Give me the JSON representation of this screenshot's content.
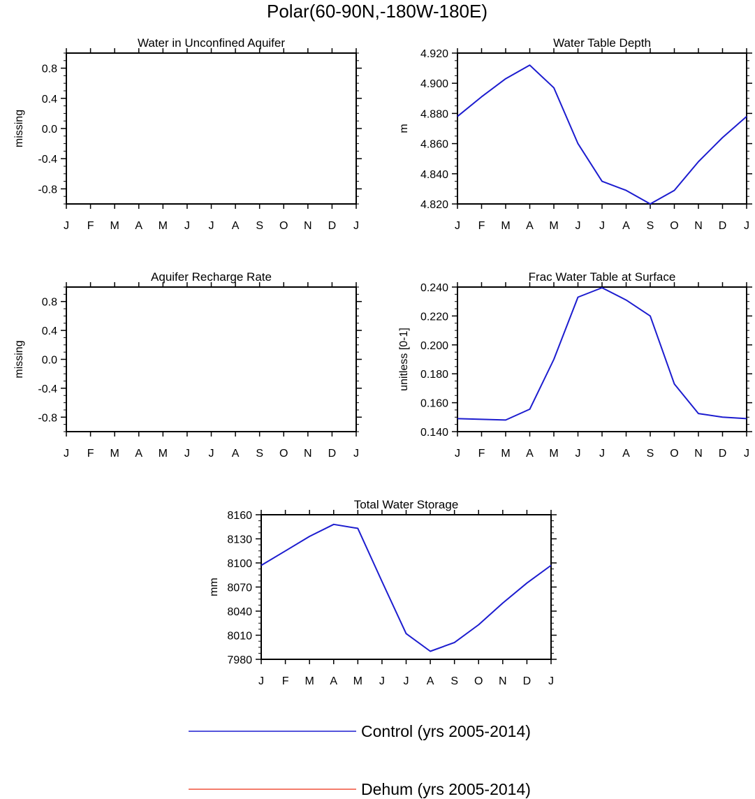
{
  "figure": {
    "title": "Polar(60-90N,-180W-180E)"
  },
  "colors": {
    "control": "#1c1ccf",
    "dehum": "#f0503c",
    "axis": "#000000"
  },
  "legend": {
    "placement": "bottom-center",
    "entries": [
      {
        "label": "Control (yrs 2005-2014)",
        "color": "#1c1ccf"
      },
      {
        "label": "Dehum (yrs 2005-2014)",
        "color": "#f0503c"
      }
    ]
  },
  "chart_data": [
    {
      "type": "line",
      "title": "Water in Unconfined Aquifer",
      "xlabel": "",
      "ylabel": "missing",
      "categories": [
        "J",
        "F",
        "M",
        "A",
        "M",
        "J",
        "J",
        "A",
        "S",
        "O",
        "N",
        "D",
        "J"
      ],
      "ylim": [
        -1.0,
        1.0
      ],
      "yticks": [
        -0.8,
        -0.4,
        0.0,
        0.4,
        0.8
      ],
      "ytick_labels": [
        "-0.8",
        "-0.4",
        "0.0",
        "0.4",
        "0.8"
      ],
      "yminor": 0.1,
      "grid": false,
      "series": []
    },
    {
      "type": "line",
      "title": "Water Table Depth",
      "xlabel": "",
      "ylabel": "m",
      "categories": [
        "J",
        "F",
        "M",
        "A",
        "M",
        "J",
        "J",
        "A",
        "S",
        "O",
        "N",
        "D",
        "J"
      ],
      "ylim": [
        4.82,
        4.92
      ],
      "yticks": [
        4.82,
        4.84,
        4.86,
        4.88,
        4.9,
        4.92
      ],
      "ytick_labels": [
        "4.820",
        "4.840",
        "4.860",
        "4.880",
        "4.900",
        "4.920"
      ],
      "yminor": 0.005,
      "grid": false,
      "series": [
        {
          "name": "Control (yrs 2005-2014)",
          "values": [
            4.878,
            4.891,
            4.903,
            4.912,
            4.897,
            4.86,
            4.835,
            4.829,
            4.82,
            4.829,
            4.848,
            4.864,
            4.878
          ]
        }
      ]
    },
    {
      "type": "line",
      "title": "Aquifer Recharge Rate",
      "xlabel": "",
      "ylabel": "missing",
      "categories": [
        "J",
        "F",
        "M",
        "A",
        "M",
        "J",
        "J",
        "A",
        "S",
        "O",
        "N",
        "D",
        "J"
      ],
      "ylim": [
        -1.0,
        1.0
      ],
      "yticks": [
        -0.8,
        -0.4,
        0.0,
        0.4,
        0.8
      ],
      "ytick_labels": [
        "-0.8",
        "-0.4",
        "0.0",
        "0.4",
        "0.8"
      ],
      "yminor": 0.1,
      "grid": false,
      "series": []
    },
    {
      "type": "line",
      "title": "Frac Water Table at Surface",
      "xlabel": "",
      "ylabel": "unitless [0-1]",
      "categories": [
        "J",
        "F",
        "M",
        "A",
        "M",
        "J",
        "J",
        "A",
        "S",
        "O",
        "N",
        "D",
        "J"
      ],
      "ylim": [
        0.14,
        0.24
      ],
      "yticks": [
        0.14,
        0.16,
        0.18,
        0.2,
        0.22,
        0.24
      ],
      "ytick_labels": [
        "0.140",
        "0.160",
        "0.180",
        "0.200",
        "0.220",
        "0.240"
      ],
      "yminor": 0.005,
      "grid": false,
      "series": [
        {
          "name": "Control (yrs 2005-2014)",
          "values": [
            0.149,
            0.1485,
            0.148,
            0.1555,
            0.19,
            0.233,
            0.2395,
            0.231,
            0.22,
            0.173,
            0.1525,
            0.15,
            0.149
          ]
        }
      ]
    },
    {
      "type": "line",
      "title": "Total Water Storage",
      "xlabel": "",
      "ylabel": "mm",
      "categories": [
        "J",
        "F",
        "M",
        "A",
        "M",
        "J",
        "J",
        "A",
        "S",
        "O",
        "N",
        "D",
        "J"
      ],
      "ylim": [
        7980,
        8160
      ],
      "yticks": [
        7980,
        8010,
        8040,
        8070,
        8100,
        8130,
        8160
      ],
      "ytick_labels": [
        "7980",
        "8010",
        "8040",
        "8070",
        "8100",
        "8130",
        "8160"
      ],
      "yminor": 7.5,
      "grid": false,
      "series": [
        {
          "name": "Control (yrs 2005-2014)",
          "values": [
            8097,
            8115,
            8133,
            8148,
            8143,
            8077,
            8012,
            7990,
            8001,
            8023,
            8050,
            8075,
            8097
          ]
        }
      ]
    }
  ]
}
